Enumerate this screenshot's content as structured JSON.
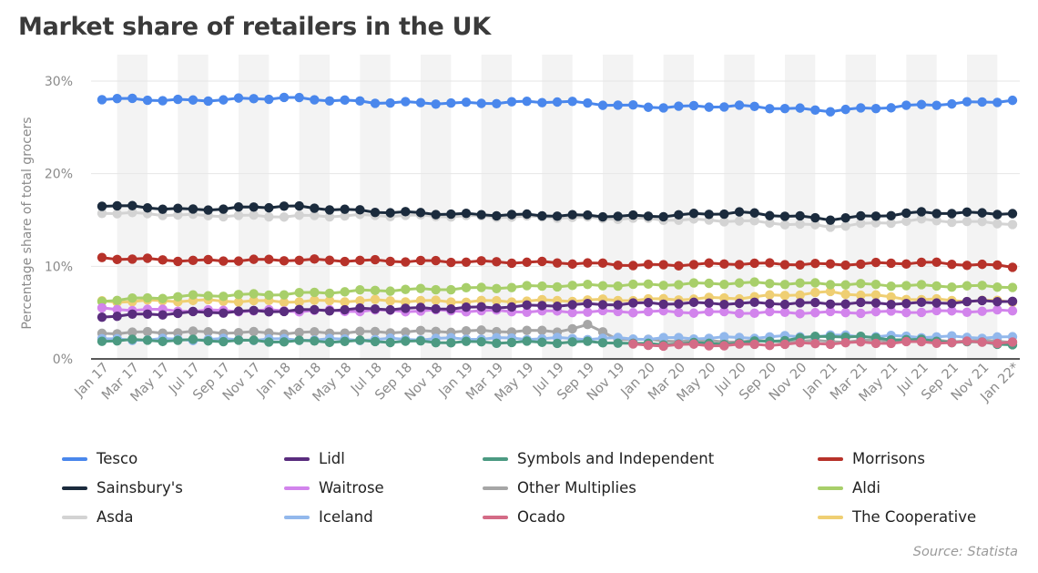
{
  "title": "Market share of retailers in the UK",
  "source": "Source: Statista",
  "colors": {
    "Tesco": "#4a87ec",
    "Sainsbury's": "#1b2b3d",
    "Asda": "#d3d3d3",
    "Lidl": "#5a2d7e",
    "Waitrose": "#d284ec",
    "Iceland": "#92b8ec",
    "Symbols and Independent": "#4c9a82",
    "Other Multiplies": "#a6a6a6",
    "Ocado": "#d46b86",
    "Morrisons": "#b7322a",
    "Aldi": "#a8cf6a",
    "The Cooperative": "#efcf73"
  },
  "chart_data": {
    "type": "line",
    "title": "Market share of retailers in the UK",
    "ylabel": "Percentage share of total grocers",
    "xlabel": "",
    "ylim": [
      0,
      30
    ],
    "yticks": [
      "0%",
      "10%",
      "20%",
      "30%"
    ],
    "ytick_values": [
      0,
      10,
      20,
      30
    ],
    "x_tick_labels": [
      "Jan 17",
      "Mar 17",
      "May 17",
      "Jul 17",
      "Sep 17",
      "Nov 17",
      "Jan 18",
      "Mar 18",
      "May 18",
      "Jul 18",
      "Sep 18",
      "Nov 18",
      "Jan 19",
      "Mar 19",
      "May 19",
      "Jul 19",
      "Sep 19",
      "Nov 19",
      "Jan 20",
      "Mar 20",
      "May 20",
      "Jul 20",
      "Sep 20",
      "Nov 20",
      "Jan 21",
      "Mar 21",
      "May 21",
      "Jul 21",
      "Sep 21",
      "Nov 21",
      "Jan 22*"
    ],
    "n_points": 61,
    "grid": "horizontal",
    "legend_position": "bottom",
    "series": [
      {
        "name": "Tesco",
        "keys": [
          [
            0,
            28.1
          ],
          [
            6,
            27.9
          ],
          [
            12,
            28.2
          ],
          [
            18,
            27.7
          ],
          [
            24,
            27.6
          ],
          [
            30,
            27.8
          ],
          [
            36,
            27.2
          ],
          [
            42,
            27.3
          ],
          [
            48,
            26.8
          ],
          [
            54,
            27.4
          ],
          [
            60,
            27.9
          ]
        ]
      },
      {
        "name": "Sainsbury's",
        "keys": [
          [
            0,
            16.6
          ],
          [
            6,
            16.1
          ],
          [
            12,
            16.5
          ],
          [
            18,
            15.9
          ],
          [
            24,
            15.6
          ],
          [
            30,
            15.5
          ],
          [
            36,
            15.4
          ],
          [
            42,
            15.8
          ],
          [
            48,
            15.1
          ],
          [
            54,
            15.8
          ],
          [
            60,
            15.7
          ]
        ]
      },
      {
        "name": "Asda",
        "keys": [
          [
            0,
            15.8
          ],
          [
            6,
            15.5
          ],
          [
            12,
            15.4
          ],
          [
            18,
            15.5
          ],
          [
            24,
            15.4
          ],
          [
            30,
            15.3
          ],
          [
            36,
            15.1
          ],
          [
            42,
            14.9
          ],
          [
            48,
            14.3
          ],
          [
            54,
            15.0
          ],
          [
            60,
            14.6
          ]
        ]
      },
      {
        "name": "Morrisons",
        "keys": [
          [
            0,
            10.9
          ],
          [
            6,
            10.6
          ],
          [
            12,
            10.7
          ],
          [
            18,
            10.6
          ],
          [
            24,
            10.5
          ],
          [
            30,
            10.4
          ],
          [
            36,
            10.1
          ],
          [
            42,
            10.3
          ],
          [
            48,
            10.2
          ],
          [
            54,
            10.4
          ],
          [
            60,
            10.0
          ]
        ]
      },
      {
        "name": "Aldi",
        "keys": [
          [
            0,
            6.3
          ],
          [
            6,
            6.8
          ],
          [
            12,
            7.0
          ],
          [
            18,
            7.4
          ],
          [
            24,
            7.6
          ],
          [
            30,
            7.9
          ],
          [
            36,
            8.0
          ],
          [
            42,
            8.2
          ],
          [
            48,
            8.1
          ],
          [
            54,
            7.9
          ],
          [
            60,
            7.8
          ]
        ]
      },
      {
        "name": "The Cooperative",
        "keys": [
          [
            0,
            6.2
          ],
          [
            6,
            6.3
          ],
          [
            12,
            6.2
          ],
          [
            18,
            6.3
          ],
          [
            24,
            6.2
          ],
          [
            30,
            6.3
          ],
          [
            36,
            6.4
          ],
          [
            42,
            6.6
          ],
          [
            48,
            7.2
          ],
          [
            54,
            6.4
          ],
          [
            60,
            6.2
          ]
        ]
      },
      {
        "name": "Lidl",
        "keys": [
          [
            0,
            4.6
          ],
          [
            6,
            5.0
          ],
          [
            12,
            5.2
          ],
          [
            18,
            5.4
          ],
          [
            24,
            5.5
          ],
          [
            30,
            5.8
          ],
          [
            36,
            6.0
          ],
          [
            42,
            6.0
          ],
          [
            48,
            6.0
          ],
          [
            54,
            6.0
          ],
          [
            60,
            6.3
          ]
        ]
      },
      {
        "name": "Waitrose",
        "keys": [
          [
            0,
            5.4
          ],
          [
            6,
            5.2
          ],
          [
            12,
            5.2
          ],
          [
            18,
            5.2
          ],
          [
            24,
            5.2
          ],
          [
            30,
            5.1
          ],
          [
            36,
            5.1
          ],
          [
            42,
            5.0
          ],
          [
            48,
            5.0
          ],
          [
            54,
            5.1
          ],
          [
            60,
            5.2
          ]
        ]
      },
      {
        "name": "Other Multiplies",
        "keys": [
          [
            0,
            2.8
          ],
          [
            6,
            2.9
          ],
          [
            12,
            2.8
          ],
          [
            18,
            2.9
          ],
          [
            24,
            3.0
          ],
          [
            30,
            3.0
          ],
          [
            32,
            3.6
          ],
          [
            34,
            2.2
          ],
          [
            36,
            2.0
          ],
          [
            42,
            1.9
          ],
          [
            48,
            1.9
          ],
          [
            54,
            2.0
          ],
          [
            60,
            1.9
          ]
        ]
      },
      {
        "name": "Iceland",
        "keys": [
          [
            0,
            2.1
          ],
          [
            6,
            2.1
          ],
          [
            12,
            2.1
          ],
          [
            18,
            2.1
          ],
          [
            24,
            2.2
          ],
          [
            30,
            2.2
          ],
          [
            36,
            2.2
          ],
          [
            42,
            2.3
          ],
          [
            48,
            2.5
          ],
          [
            54,
            2.4
          ],
          [
            60,
            2.3
          ]
        ]
      },
      {
        "name": "Symbols and Independent",
        "keys": [
          [
            0,
            2.0
          ],
          [
            6,
            2.0
          ],
          [
            12,
            1.9
          ],
          [
            18,
            1.9
          ],
          [
            24,
            1.8
          ],
          [
            30,
            1.8
          ],
          [
            34,
            1.8
          ],
          [
            35,
            1.6
          ],
          [
            42,
            1.7
          ],
          [
            46,
            2.2
          ],
          [
            48,
            2.5
          ],
          [
            54,
            2.0
          ],
          [
            60,
            1.6
          ]
        ]
      },
      {
        "name": "Ocado",
        "keys": [
          [
            0,
            null
          ],
          [
            35,
            1.5
          ],
          [
            42,
            1.5
          ],
          [
            48,
            1.7
          ],
          [
            54,
            1.8
          ],
          [
            60,
            1.8
          ]
        ]
      }
    ]
  },
  "legend": [
    {
      "label": "Tesco",
      "color": "#4a87ec"
    },
    {
      "label": "Lidl",
      "color": "#5a2d7e"
    },
    {
      "label": "Symbols and Independent",
      "color": "#4c9a82"
    },
    {
      "label": "Morrisons",
      "color": "#b7322a"
    },
    {
      "label": "Sainsbury's",
      "color": "#1b2b3d"
    },
    {
      "label": "Waitrose",
      "color": "#d284ec"
    },
    {
      "label": "Other Multiplies",
      "color": "#a6a6a6"
    },
    {
      "label": "Aldi",
      "color": "#a8cf6a"
    },
    {
      "label": "Asda",
      "color": "#d3d3d3"
    },
    {
      "label": "Iceland",
      "color": "#92b8ec"
    },
    {
      "label": "Ocado",
      "color": "#d46b86"
    },
    {
      "label": "The Cooperative",
      "color": "#efcf73"
    }
  ]
}
